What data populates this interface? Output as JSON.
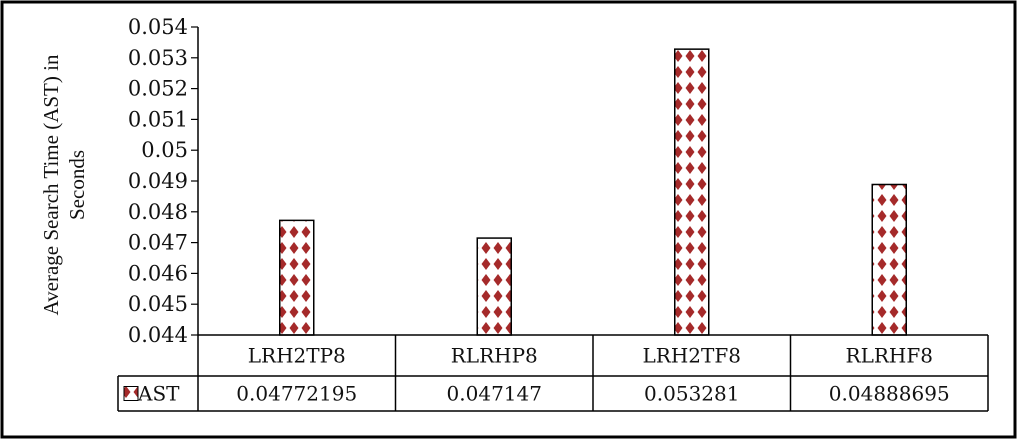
{
  "chart_data": {
    "type": "bar",
    "categories": [
      "LRH2TP8",
      "RLRHP8",
      "LRH2TF8",
      "RLRHF8"
    ],
    "series": [
      {
        "name": "AST",
        "values": [
          0.04772195,
          0.047147,
          0.053281,
          0.04888695
        ],
        "value_labels": [
          "0.04772195",
          "0.047147",
          "0.053281",
          "0.04888695"
        ],
        "color": "#a52a2a",
        "pattern": "white-diamond-on-brown"
      }
    ],
    "title": "",
    "xlabel": "",
    "ylabel_lines": [
      "Average Search Time (AST) in",
      "Seconds"
    ],
    "ylim": [
      0.044,
      0.054
    ],
    "yticks": [
      0.044,
      0.045,
      0.046,
      0.047,
      0.048,
      0.049,
      0.05,
      0.051,
      0.052,
      0.053,
      0.054
    ],
    "ytick_labels": [
      "0.044",
      "0.045",
      "0.046",
      "0.047",
      "0.048",
      "0.049",
      "0.05",
      "0.051",
      "0.052",
      "0.053",
      "0.054"
    ],
    "grid": false,
    "legend": "data-table",
    "data_table": true
  }
}
